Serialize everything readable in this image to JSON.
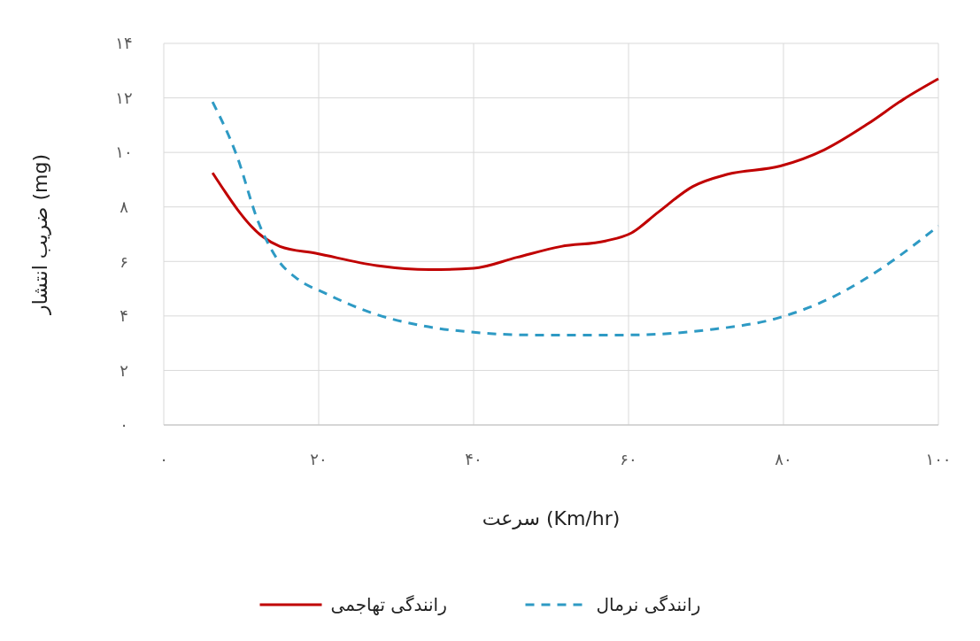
{
  "chart_data": {
    "type": "line",
    "xlabel": "سرعت (Km/hr)",
    "ylabel": "ضریب انتشار (mg)",
    "xlim": [
      0,
      100
    ],
    "xticks": [
      {
        "value": 0,
        "label": "۰"
      },
      {
        "value": 20,
        "label": "۲۰"
      },
      {
        "value": 40,
        "label": "۴۰"
      },
      {
        "value": 60,
        "label": "۶۰"
      },
      {
        "value": 80,
        "label": "۸۰"
      },
      {
        "value": 100,
        "label": "۱۰۰"
      }
    ],
    "ylim": [
      0,
      14
    ],
    "yticks": [
      {
        "value": 0,
        "label": "۰"
      },
      {
        "value": 2,
        "label": "۲"
      },
      {
        "value": 4,
        "label": "۴"
      },
      {
        "value": 6,
        "label": "۶"
      },
      {
        "value": 8,
        "label": "۸"
      },
      {
        "value": 10,
        "label": "۱۰"
      },
      {
        "value": 12,
        "label": "۱۲"
      },
      {
        "value": 14,
        "label": "۱۴"
      }
    ],
    "grid": true,
    "legend": "bottom",
    "series": [
      {
        "name": "رانندگی تهاجمی",
        "color": "#c00000",
        "line_style": "solid",
        "x": [
          6.3,
          12.8,
          15,
          19.6,
          27.5,
          34.3,
          40,
          45.6,
          51.3,
          57,
          60.4,
          63.8,
          68.3,
          72.8,
          79.6,
          85.3,
          90.9,
          95.5,
          100
        ],
        "values": [
          9.25,
          6.9,
          6.55,
          6.3,
          5.85,
          5.7,
          5.75,
          6.15,
          6.55,
          6.75,
          7.05,
          7.8,
          8.75,
          9.2,
          9.5,
          10.1,
          11.05,
          11.95,
          12.7
        ]
      },
      {
        "name": "رانندگی نرمال",
        "color": "#2e9ac4",
        "line_style": "dashed",
        "x": [
          6.3,
          9.4,
          12.2,
          14.5,
          17.3,
          20.7,
          27.5,
          33.2,
          40,
          47.9,
          59.2,
          70.6,
          79.6,
          86.4,
          93.2,
          100
        ],
        "values": [
          11.85,
          9.9,
          7.45,
          6.15,
          5.35,
          4.85,
          4.05,
          3.65,
          3.4,
          3.3,
          3.3,
          3.5,
          3.95,
          4.7,
          5.85,
          7.3
        ]
      }
    ]
  }
}
